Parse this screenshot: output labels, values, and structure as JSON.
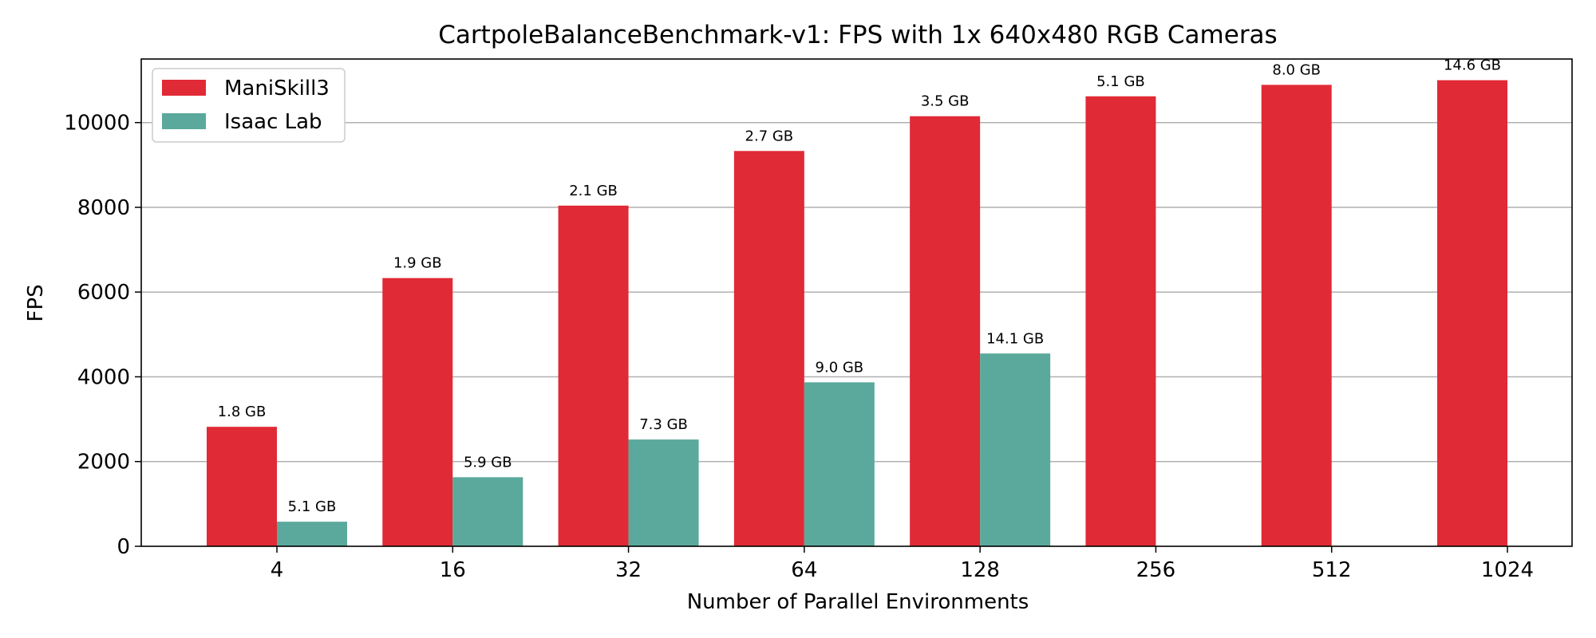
{
  "chart_data": {
    "type": "bar",
    "title": "CartpoleBalanceBenchmark-v1: FPS with 1x 640x480 RGB Cameras",
    "xlabel": "Number of Parallel Environments",
    "ylabel": "FPS",
    "categories": [
      "4",
      "16",
      "32",
      "64",
      "128",
      "256",
      "512",
      "1024"
    ],
    "ylim": [
      0,
      11500
    ],
    "yticks": [
      0,
      2000,
      4000,
      6000,
      8000,
      10000
    ],
    "grid": "y",
    "legend_position": "top-left",
    "series": [
      {
        "name": "ManiSkill3",
        "color": "#e02a35",
        "values": [
          2820,
          6330,
          8040,
          9330,
          10150,
          10620,
          10890,
          11000
        ],
        "labels": [
          "1.8 GB",
          "1.9 GB",
          "2.1 GB",
          "2.7 GB",
          "3.5 GB",
          "5.1 GB",
          "8.0 GB",
          "14.6 GB"
        ]
      },
      {
        "name": "Isaac Lab",
        "color": "#5aa99c",
        "values": [
          580,
          1630,
          2520,
          3870,
          4550,
          null,
          null,
          null
        ],
        "labels": [
          "5.1 GB",
          "5.9 GB",
          "7.3 GB",
          "9.0 GB",
          "14.1 GB",
          null,
          null,
          null
        ]
      }
    ]
  }
}
